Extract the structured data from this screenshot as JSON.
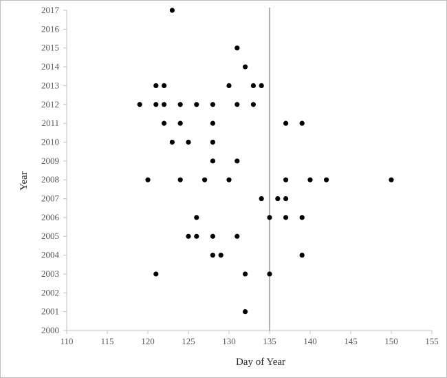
{
  "chart_data": {
    "type": "scatter",
    "xlabel": "Day of Year",
    "ylabel": "Year",
    "xlim": [
      110,
      155
    ],
    "ylim": [
      2000,
      2017
    ],
    "x_ticks": [
      110,
      115,
      120,
      125,
      130,
      135,
      140,
      145,
      150,
      155
    ],
    "y_ticks": [
      2000,
      2001,
      2002,
      2003,
      2004,
      2005,
      2006,
      2007,
      2008,
      2009,
      2010,
      2011,
      2012,
      2013,
      2014,
      2015,
      2016,
      2017
    ],
    "grid": false,
    "legend": "none",
    "reference_line_x": 135,
    "marker_color": "#000000",
    "series": [
      {
        "points": [
          {
            "x": 132,
            "y": 2001
          },
          {
            "x": 121,
            "y": 2003
          },
          {
            "x": 132,
            "y": 2003
          },
          {
            "x": 135,
            "y": 2003
          },
          {
            "x": 128,
            "y": 2004
          },
          {
            "x": 129,
            "y": 2004
          },
          {
            "x": 139,
            "y": 2004
          },
          {
            "x": 125,
            "y": 2005
          },
          {
            "x": 126,
            "y": 2005
          },
          {
            "x": 128,
            "y": 2005
          },
          {
            "x": 131,
            "y": 2005
          },
          {
            "x": 126,
            "y": 2006
          },
          {
            "x": 135,
            "y": 2006
          },
          {
            "x": 137,
            "y": 2006
          },
          {
            "x": 139,
            "y": 2006
          },
          {
            "x": 134,
            "y": 2007
          },
          {
            "x": 136,
            "y": 2007
          },
          {
            "x": 137,
            "y": 2007
          },
          {
            "x": 120,
            "y": 2008
          },
          {
            "x": 124,
            "y": 2008
          },
          {
            "x": 127,
            "y": 2008
          },
          {
            "x": 130,
            "y": 2008
          },
          {
            "x": 137,
            "y": 2008
          },
          {
            "x": 140,
            "y": 2008
          },
          {
            "x": 142,
            "y": 2008
          },
          {
            "x": 150,
            "y": 2008
          },
          {
            "x": 128,
            "y": 2009
          },
          {
            "x": 131,
            "y": 2009
          },
          {
            "x": 123,
            "y": 2010
          },
          {
            "x": 125,
            "y": 2010
          },
          {
            "x": 128,
            "y": 2010
          },
          {
            "x": 122,
            "y": 2011
          },
          {
            "x": 124,
            "y": 2011
          },
          {
            "x": 128,
            "y": 2011
          },
          {
            "x": 137,
            "y": 2011
          },
          {
            "x": 139,
            "y": 2011
          },
          {
            "x": 119,
            "y": 2012
          },
          {
            "x": 121,
            "y": 2012
          },
          {
            "x": 122,
            "y": 2012
          },
          {
            "x": 124,
            "y": 2012
          },
          {
            "x": 126,
            "y": 2012
          },
          {
            "x": 128,
            "y": 2012
          },
          {
            "x": 131,
            "y": 2012
          },
          {
            "x": 133,
            "y": 2012
          },
          {
            "x": 121,
            "y": 2013
          },
          {
            "x": 122,
            "y": 2013
          },
          {
            "x": 130,
            "y": 2013
          },
          {
            "x": 133,
            "y": 2013
          },
          {
            "x": 134,
            "y": 2013
          },
          {
            "x": 132,
            "y": 2014
          },
          {
            "x": 131,
            "y": 2015
          },
          {
            "x": 123,
            "y": 2017
          }
        ]
      }
    ]
  }
}
